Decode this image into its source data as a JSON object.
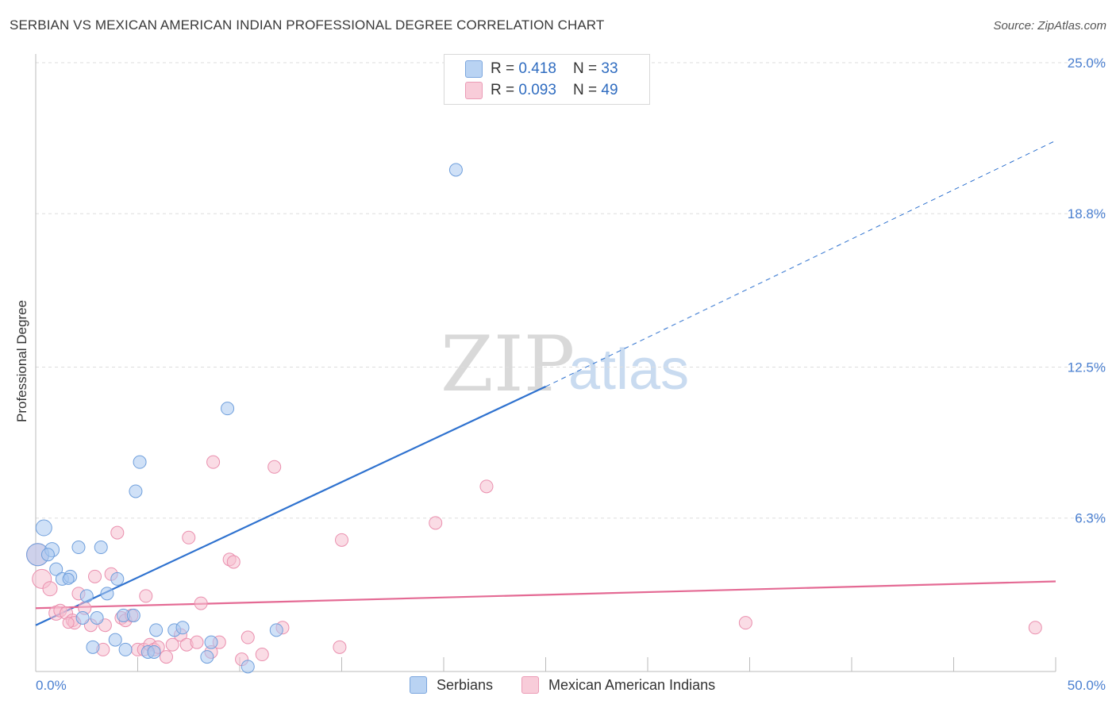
{
  "header": {
    "title": "SERBIAN VS MEXICAN AMERICAN INDIAN PROFESSIONAL DEGREE CORRELATION CHART",
    "source": "Source: ZipAtlas.com"
  },
  "watermark": {
    "zip": "ZIP",
    "atlas": "atlas"
  },
  "legend_top": {
    "rows": [
      {
        "r_label": "R = ",
        "r_value": "0.418",
        "n_label": "N = ",
        "n_value": "33"
      },
      {
        "r_label": "R = ",
        "r_value": "0.093",
        "n_label": "N = ",
        "n_value": "49"
      }
    ]
  },
  "legend_bottom": {
    "items": [
      {
        "label": "Serbians"
      },
      {
        "label": "Mexican American Indians"
      }
    ]
  },
  "colors": {
    "serbian_fill": "#a9c8f0",
    "serbian_stroke": "#6f9fdc",
    "serbian_line": "#2f72cf",
    "mexican_fill": "#f6bfd0",
    "mexican_stroke": "#ea8fae",
    "mexican_line": "#e46a94",
    "tick_text": "#4a7fd0",
    "grid": "#dddddd"
  },
  "chart_data": {
    "type": "scatter",
    "title": "SERBIAN VS MEXICAN AMERICAN INDIAN PROFESSIONAL DEGREE CORRELATION CHART",
    "xlabel": "",
    "ylabel": "Professional Degree",
    "xlim": [
      0,
      50
    ],
    "ylim": [
      0,
      25.6
    ],
    "x_tick_labels": [
      "0.0%",
      "50.0%"
    ],
    "y_ticks": [
      6.3,
      12.5,
      18.8,
      25.0
    ],
    "y_tick_labels": [
      "6.3%",
      "12.5%",
      "18.8%",
      "25.0%"
    ],
    "grid": "horizontal dashed",
    "legend": "top-center and bottom",
    "series": [
      {
        "name": "Serbians",
        "R": 0.418,
        "N": 33,
        "points": [
          [
            0.1,
            4.8,
            14
          ],
          [
            0.4,
            5.9,
            10
          ],
          [
            0.8,
            5.0,
            9
          ],
          [
            0.6,
            4.8,
            8
          ],
          [
            1.0,
            4.2,
            8
          ],
          [
            1.3,
            3.8,
            8
          ],
          [
            1.7,
            3.9,
            8
          ],
          [
            1.6,
            3.8,
            7
          ],
          [
            2.1,
            5.1,
            8
          ],
          [
            2.3,
            2.2,
            8
          ],
          [
            2.5,
            3.1,
            8
          ],
          [
            3.0,
            2.2,
            8
          ],
          [
            3.2,
            5.1,
            8
          ],
          [
            3.5,
            3.2,
            8
          ],
          [
            2.8,
            1.0,
            8
          ],
          [
            3.9,
            1.3,
            8
          ],
          [
            4.0,
            3.8,
            8
          ],
          [
            4.3,
            2.3,
            8
          ],
          [
            4.4,
            0.9,
            8
          ],
          [
            4.8,
            2.3,
            8
          ],
          [
            4.9,
            7.4,
            8
          ],
          [
            5.1,
            8.6,
            8
          ],
          [
            5.5,
            0.8,
            8
          ],
          [
            5.9,
            1.7,
            8
          ],
          [
            5.8,
            0.8,
            8
          ],
          [
            6.8,
            1.7,
            8
          ],
          [
            7.2,
            1.8,
            8
          ],
          [
            8.4,
            0.6,
            8
          ],
          [
            8.6,
            1.2,
            8
          ],
          [
            9.4,
            10.8,
            8
          ],
          [
            10.4,
            0.2,
            8
          ],
          [
            11.8,
            1.7,
            8
          ],
          [
            20.6,
            20.6,
            8
          ]
        ],
        "trend": {
          "x0": 0,
          "y0": 1.9,
          "x1": 25,
          "y1": 11.7,
          "dashed_to_x": 50,
          "dashed_to_y": 21.8
        }
      },
      {
        "name": "Mexican American Indians",
        "R": 0.093,
        "N": 49,
        "points": [
          [
            0.1,
            4.8,
            14
          ],
          [
            0.3,
            3.8,
            12
          ],
          [
            0.7,
            3.4,
            9
          ],
          [
            1.0,
            2.4,
            9
          ],
          [
            1.2,
            2.5,
            8
          ],
          [
            1.5,
            2.4,
            8
          ],
          [
            1.8,
            2.1,
            8
          ],
          [
            1.9,
            2.0,
            8
          ],
          [
            2.1,
            3.2,
            8
          ],
          [
            2.4,
            2.6,
            8
          ],
          [
            2.7,
            1.9,
            8
          ],
          [
            2.9,
            3.9,
            8
          ],
          [
            3.3,
            0.9,
            8
          ],
          [
            3.4,
            1.9,
            8
          ],
          [
            3.7,
            4.0,
            8
          ],
          [
            4.0,
            5.7,
            8
          ],
          [
            4.2,
            2.2,
            8
          ],
          [
            4.4,
            2.1,
            8
          ],
          [
            4.7,
            2.3,
            8
          ],
          [
            5.0,
            0.9,
            8
          ],
          [
            5.3,
            0.9,
            8
          ],
          [
            5.4,
            3.1,
            8
          ],
          [
            5.6,
            1.1,
            8
          ],
          [
            5.8,
            0.9,
            8
          ],
          [
            6.0,
            1.0,
            8
          ],
          [
            6.4,
            0.6,
            8
          ],
          [
            6.7,
            1.1,
            8
          ],
          [
            7.1,
            1.5,
            8
          ],
          [
            7.4,
            1.1,
            8
          ],
          [
            7.5,
            5.5,
            8
          ],
          [
            7.9,
            1.2,
            8
          ],
          [
            8.1,
            2.8,
            8
          ],
          [
            8.6,
            0.8,
            8
          ],
          [
            9.0,
            1.2,
            8
          ],
          [
            8.7,
            8.6,
            8
          ],
          [
            9.5,
            4.6,
            8
          ],
          [
            9.7,
            4.5,
            8
          ],
          [
            10.1,
            0.5,
            8
          ],
          [
            10.4,
            1.4,
            8
          ],
          [
            11.1,
            0.7,
            8
          ],
          [
            11.7,
            8.4,
            8
          ],
          [
            12.1,
            1.8,
            8
          ],
          [
            14.9,
            1.0,
            8
          ],
          [
            15.0,
            5.4,
            8
          ],
          [
            19.6,
            6.1,
            8
          ],
          [
            22.1,
            7.6,
            8
          ],
          [
            34.8,
            2.0,
            8
          ],
          [
            49.0,
            1.8,
            8
          ],
          [
            1.6,
            2.0,
            7
          ]
        ],
        "trend": {
          "x0": 0,
          "y0": 2.6,
          "x1": 50,
          "y1": 3.7
        }
      }
    ]
  }
}
